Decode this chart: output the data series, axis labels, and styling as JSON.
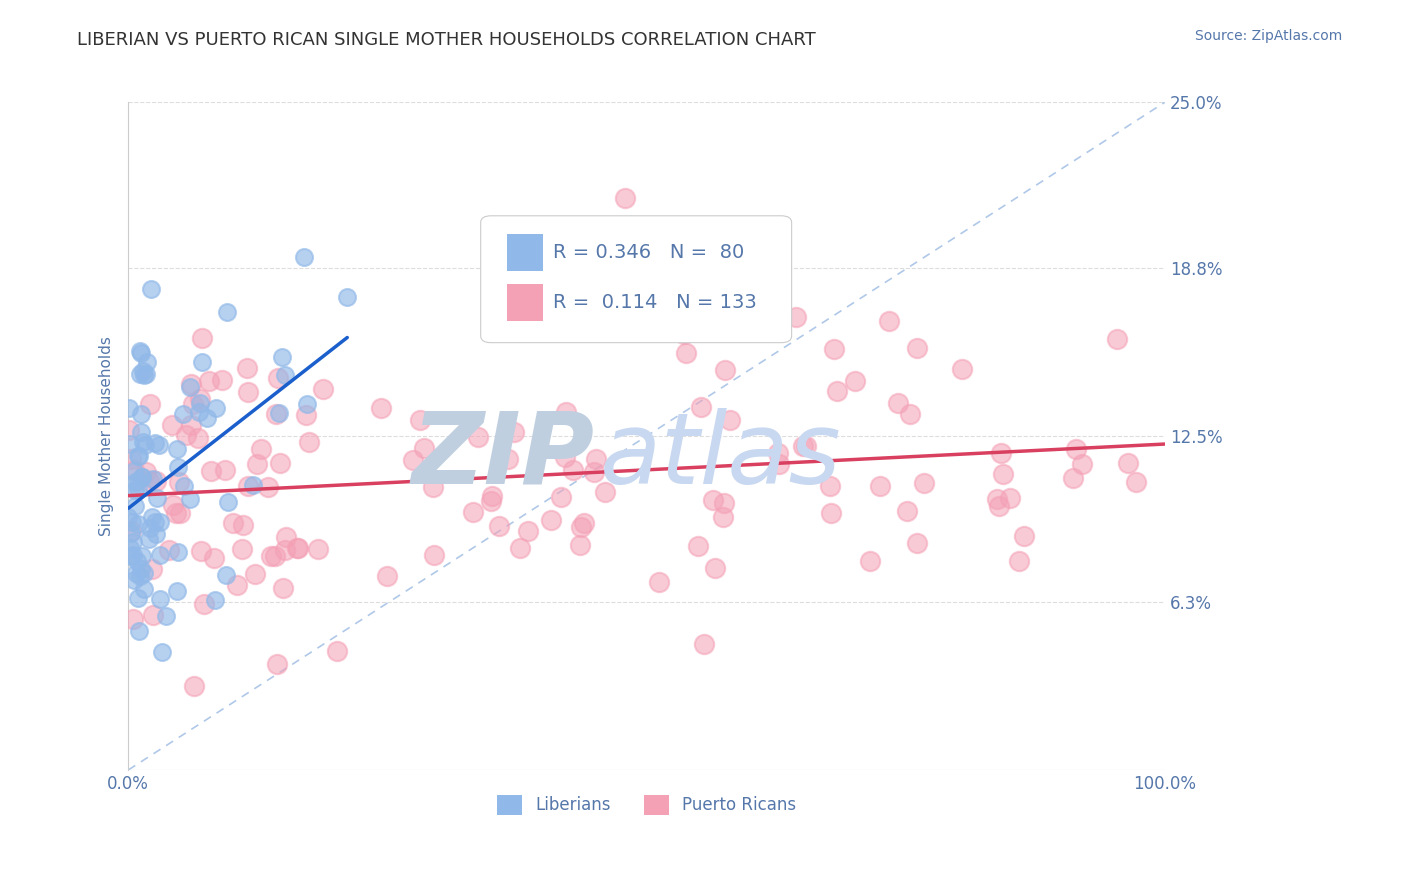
{
  "title": "LIBERIAN VS PUERTO RICAN SINGLE MOTHER HOUSEHOLDS CORRELATION CHART",
  "source": "Source: ZipAtlas.com",
  "ylabel": "Single Mother Households",
  "xlim": [
    0,
    100
  ],
  "ylim": [
    0,
    25
  ],
  "ytick_vals": [
    6.3,
    12.5,
    18.8,
    25.0
  ],
  "ytick_labels": [
    "6.3%",
    "12.5%",
    "18.8%",
    "25.0%"
  ],
  "xtick_vals": [
    0,
    100
  ],
  "xtick_labels": [
    "0.0%",
    "100.0%"
  ],
  "liberian_R": 0.346,
  "liberian_N": 80,
  "puerto_rican_R": 0.114,
  "puerto_rican_N": 133,
  "liberian_color": "#90b8e8",
  "puerto_rican_color": "#f4a0b5",
  "liberian_trend_color": "#1a5fcc",
  "puerto_rican_trend_color": "#d94060",
  "diagonal_color": "#b0c8e8",
  "watermark_zip": "ZIP",
  "watermark_atlas": "atlas",
  "watermark_color_zip": "#c8d8ee",
  "watermark_color_atlas": "#c8d8ee",
  "background_color": "#ffffff",
  "title_color": "#333333",
  "axis_label_color": "#5577aa",
  "tick_color": "#5577aa",
  "grid_color": "#dddddd",
  "title_fontsize": 13,
  "source_fontsize": 10,
  "ylabel_fontsize": 11,
  "tick_fontsize": 12,
  "legend_fontsize": 14,
  "watermark_fontsize": 72,
  "circle_size": 150,
  "circle_linewidth": 1.5
}
